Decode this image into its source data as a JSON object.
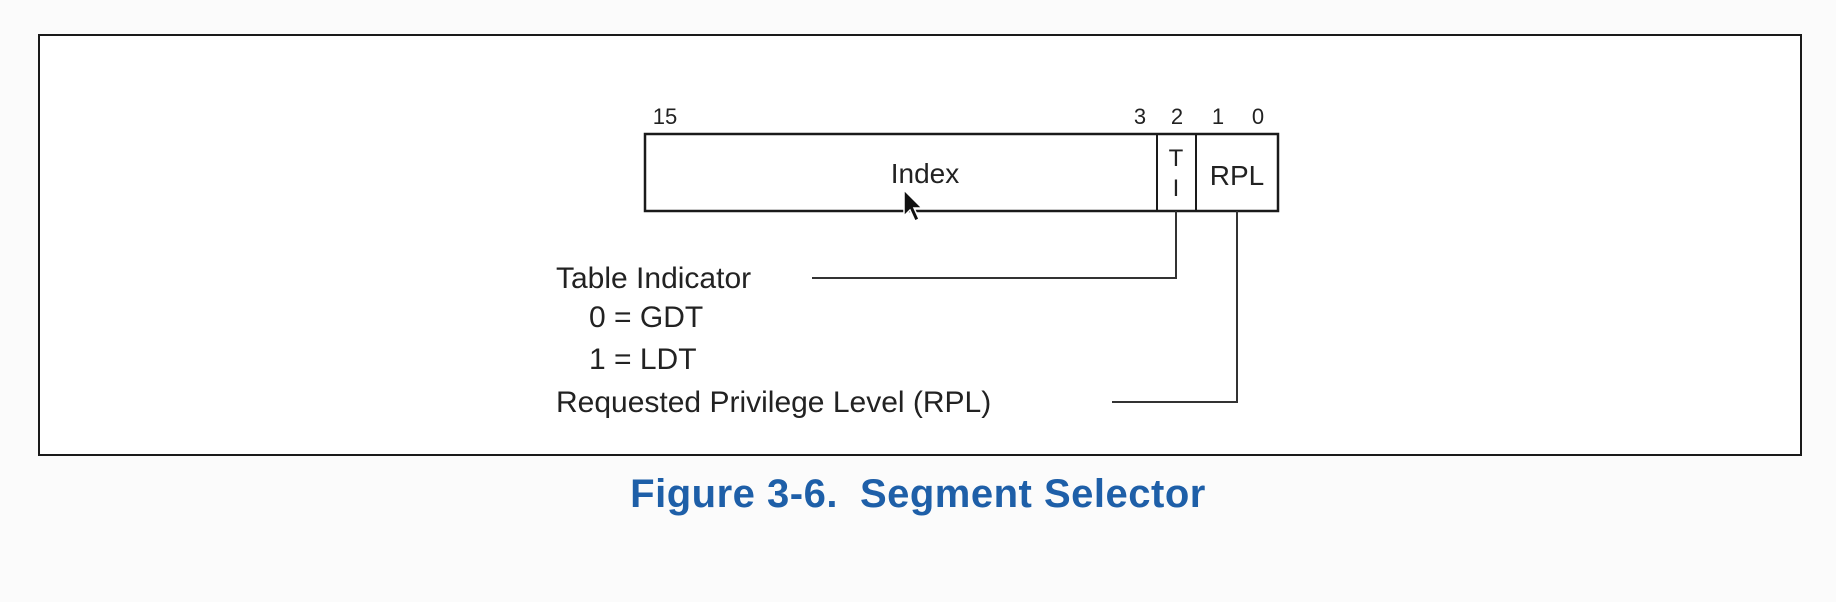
{
  "diagram": {
    "bit_labels": {
      "b15": "15",
      "b3": "3",
      "b2": "2",
      "b1": "1",
      "b0": "0"
    },
    "fields": {
      "index": "Index",
      "ti_top": "T",
      "ti_bottom": "I",
      "rpl": "RPL"
    },
    "annotations": {
      "table_indicator": "Table Indicator",
      "gdt": "0 = GDT",
      "ldt": "1 = LDT",
      "rpl_full": "Requested Privilege Level (RPL)"
    }
  },
  "caption": {
    "number": "Figure 3-6.",
    "title": "Segment Selector"
  },
  "colors": {
    "caption": "#1e5fa8",
    "lines": "#1a1a1a",
    "text": "#222222"
  }
}
